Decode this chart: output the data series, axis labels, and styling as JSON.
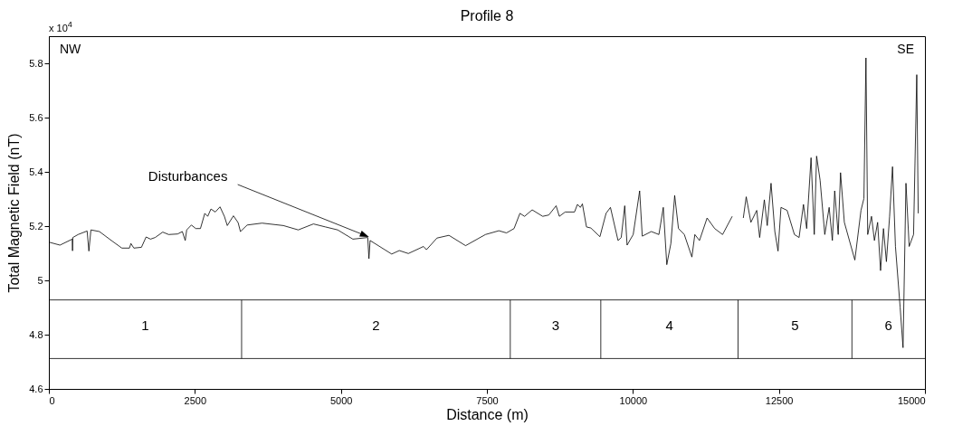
{
  "chart_data": {
    "type": "line",
    "title": "Profile 8",
    "xlabel": "Distance (m)",
    "ylabel": "Total Magnetic Field (nT)",
    "xlim": [
      0,
      15000
    ],
    "xticks": [
      0,
      2500,
      5000,
      7500,
      10000,
      12500,
      15000
    ],
    "ylim": [
      4.6,
      5.9
    ],
    "yticks": [
      4.6,
      4.8,
      5,
      5.2,
      5.4,
      5.6,
      5.8
    ],
    "grid": false,
    "marker": "none",
    "line_style": "solid",
    "series": [
      {
        "color": "#000000",
        "x": [
          0,
          190,
          400,
          405,
          410,
          500,
          655,
          685,
          720,
          865,
          1070,
          1250,
          1380,
          1405,
          1455,
          1585,
          1665,
          1740,
          1820,
          1950,
          2050,
          2205,
          2285,
          2335,
          2360,
          2440,
          2515,
          2595,
          2670,
          2720,
          2775,
          2850,
          2930,
          3005,
          3055,
          3160,
          3240,
          3280,
          3395,
          3650,
          4015,
          4270,
          4530,
          4735,
          4945,
          5205,
          5460,
          5480,
          5500,
          5870,
          6000,
          6155,
          6415,
          6465,
          6645,
          6850,
          7135,
          7475,
          7705,
          7835,
          7965,
          8065,
          8145,
          8275,
          8455,
          8560,
          8685,
          8740,
          8840,
          9000,
          9050,
          9100,
          9135,
          9205,
          9280,
          9435,
          9540,
          9615,
          9745,
          9800,
          9860,
          9900,
          10005,
          10115,
          10160,
          10315,
          10445,
          10520,
          10580,
          10650,
          10715,
          10780,
          10880,
          11010,
          11060,
          11140,
          11270,
          11400,
          11535,
          11700,
          11790,
          11890,
          11940,
          12020,
          12120,
          12170,
          12250,
          12300,
          12365,
          12430,
          12485,
          12535,
          12640,
          12765,
          12845,
          12920,
          12975,
          13050,
          13105,
          13145,
          13205,
          13285,
          13360,
          13415,
          13455,
          13515,
          13555,
          13620,
          13800,
          13905,
          13955,
          13990,
          14020,
          14085,
          14135,
          14190,
          14240,
          14290,
          14340,
          14395,
          14445,
          14495,
          14575,
          14625,
          14675,
          14730,
          14805,
          14860,
          14885
        ],
        "values": [
          5.141,
          5.13,
          5.152,
          5.109,
          5.158,
          5.169,
          5.182,
          5.108,
          5.186,
          5.18,
          5.147,
          5.119,
          5.119,
          5.136,
          5.119,
          5.122,
          5.16,
          5.152,
          5.158,
          5.178,
          5.169,
          5.171,
          5.18,
          5.147,
          5.186,
          5.204,
          5.191,
          5.191,
          5.247,
          5.236,
          5.263,
          5.252,
          5.271,
          5.236,
          5.202,
          5.238,
          5.213,
          5.18,
          5.204,
          5.211,
          5.202,
          5.186,
          5.208,
          5.197,
          5.186,
          5.152,
          5.158,
          5.08,
          5.147,
          5.097,
          5.11,
          5.099,
          5.125,
          5.113,
          5.156,
          5.166,
          5.128,
          5.169,
          5.183,
          5.175,
          5.191,
          5.247,
          5.236,
          5.26,
          5.236,
          5.241,
          5.275,
          5.236,
          5.252,
          5.252,
          5.28,
          5.269,
          5.282,
          5.197,
          5.193,
          5.161,
          5.247,
          5.269,
          5.147,
          5.158,
          5.275,
          5.13,
          5.169,
          5.33,
          5.163,
          5.18,
          5.169,
          5.269,
          5.058,
          5.136,
          5.313,
          5.191,
          5.169,
          5.086,
          5.169,
          5.147,
          5.23,
          5.191,
          5.169,
          5.236,
          null,
          5.23,
          5.308,
          5.214,
          5.258,
          5.158,
          5.297,
          5.202,
          5.358,
          5.18,
          5.108,
          5.269,
          5.258,
          5.169,
          5.158,
          5.28,
          5.191,
          5.452,
          5.169,
          5.458,
          5.369,
          5.169,
          5.269,
          5.147,
          5.33,
          5.169,
          5.397,
          5.214,
          5.075,
          5.258,
          5.302,
          5.82,
          5.169,
          5.236,
          5.147,
          5.214,
          5.036,
          5.191,
          5.069,
          5.236,
          5.419,
          5.125,
          4.902,
          4.752,
          5.358,
          5.125,
          5.169,
          5.758,
          5.247
        ]
      }
    ],
    "ref_lines": [
      {
        "axis": "y",
        "value": 4.928,
        "color": "#000000"
      },
      {
        "axis": "y",
        "value": 4.712,
        "color": "#000000"
      },
      {
        "axis": "x",
        "value": 3300,
        "color": "#000000"
      },
      {
        "axis": "x",
        "value": 7900,
        "color": "#000000"
      },
      {
        "axis": "x",
        "value": 9450,
        "color": "#000000"
      },
      {
        "axis": "x",
        "value": 11800,
        "color": "#000000"
      },
      {
        "axis": "x",
        "value": 13750,
        "color": "#000000"
      }
    ],
    "annotations": [
      "x 10$^{4}$",
      "NW",
      "SE",
      {
        "text": "Disturbances",
        "x": 5480,
        "y": 5.16
      },
      "1",
      "2",
      "3",
      "4",
      "5",
      "6"
    ]
  }
}
